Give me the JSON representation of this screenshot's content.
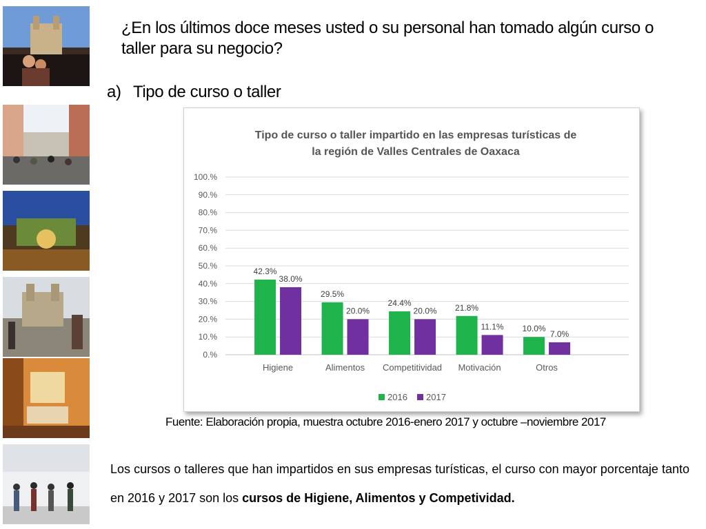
{
  "heading": {
    "question": "¿En los últimos doce meses usted o su personal han tomado algún curso o taller para su negocio?",
    "item_number": "a)",
    "item_label": "Tipo de curso o taller"
  },
  "chart_data": {
    "type": "bar",
    "title_line1": "Tipo de curso o taller impartido en las empresas turísticas de",
    "title_line2": "la región de Valles Centrales de Oaxaca",
    "categories": [
      "Higiene",
      "Alimentos",
      "Competitividad",
      "Motivación",
      "Otros"
    ],
    "series": [
      {
        "name": "2016",
        "color": "#1fb34b",
        "values": [
          42.3,
          29.5,
          24.4,
          21.8,
          10.0
        ],
        "labels": [
          "42.3%",
          "29.5%",
          "24.4%",
          "21.8%",
          "10.0%"
        ]
      },
      {
        "name": "2017",
        "color": "#7030a0",
        "values": [
          38.0,
          20.0,
          20.0,
          11.1,
          7.0
        ],
        "labels": [
          "38.0%",
          "20.0%",
          "20.0%",
          "11.1%",
          "7.0%"
        ]
      }
    ],
    "ylim": [
      0,
      100
    ],
    "yticks": [
      0,
      10,
      20,
      30,
      40,
      50,
      60,
      70,
      80,
      90,
      100
    ],
    "ytick_labels": [
      "0.%",
      "10.%",
      "20.%",
      "30.%",
      "40.%",
      "50.%",
      "60.%",
      "70.%",
      "80.%",
      "90.%",
      "100.%"
    ],
    "grid": true,
    "legend_position": "bottom"
  },
  "source": "Fuente: Elaboración propia, muestra octubre 2016-enero 2017 y octubre –noviembre 2017",
  "conclusion": {
    "text": "Los cursos o talleres que han impartidos en sus empresas turísticas, el curso con mayor porcentaje tanto en 2016 y 2017 son los ",
    "emphasis": "cursos de Higiene,  Alimentos y Competividad."
  },
  "photos": [
    "oaxaca-cathedral-photo",
    "street-crowd-photo",
    "garden-night-photo",
    "church-plaza-photo",
    "hotel-room-photo",
    "tourists-walking-photo"
  ]
}
